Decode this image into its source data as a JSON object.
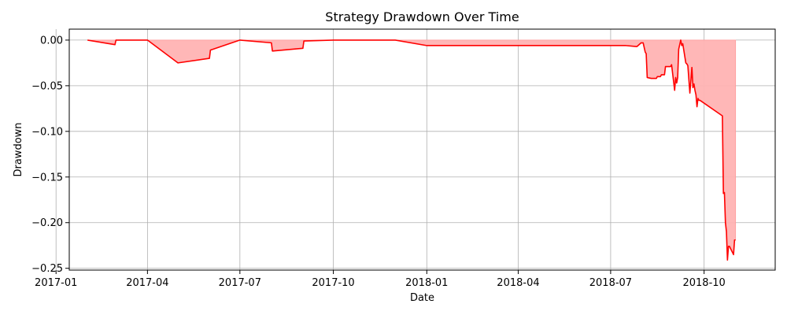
{
  "chart_data": {
    "type": "area",
    "title": "Strategy Drawdown Over Time",
    "xlabel": "Date",
    "ylabel": "Drawdown",
    "grid": true,
    "x_range": [
      "2017-01-14",
      "2018-12-10"
    ],
    "ylim": [
      -0.252,
      0.012
    ],
    "x_ticks": [
      "2017-01",
      "2017-04",
      "2017-07",
      "2017-10",
      "2018-01",
      "2018-04",
      "2018-07",
      "2018-10"
    ],
    "x_tick_dates": [
      "2017-01-01",
      "2017-04-01",
      "2017-07-01",
      "2017-10-01",
      "2018-01-01",
      "2018-04-01",
      "2018-07-01",
      "2018-10-01"
    ],
    "y_ticks": [
      0.0,
      -0.05,
      -0.1,
      -0.15,
      -0.2,
      -0.25
    ],
    "y_tick_labels": [
      "0.00",
      "−0.05",
      "−0.10",
      "−0.15",
      "−0.20",
      "−0.25"
    ],
    "series": [
      {
        "line_color": "#ff0000",
        "fill_color": "#ffb3b3",
        "x": [
          "2017-02-01",
          "2017-02-28",
          "2017-03-01",
          "2017-04-01",
          "2017-05-01",
          "2017-06-01",
          "2017-06-02",
          "2017-07-01",
          "2017-08-01",
          "2017-08-02",
          "2017-09-01",
          "2017-09-02",
          "2017-10-01",
          "2017-12-01",
          "2018-01-01",
          "2018-07-16",
          "2018-07-26",
          "2018-07-27",
          "2018-07-31",
          "2018-08-02",
          "2018-08-04",
          "2018-08-05",
          "2018-08-06",
          "2018-08-10",
          "2018-08-15",
          "2018-08-16",
          "2018-08-19",
          "2018-08-20",
          "2018-08-23",
          "2018-08-24",
          "2018-08-29",
          "2018-08-30",
          "2018-09-02",
          "2018-09-03",
          "2018-09-04",
          "2018-09-05",
          "2018-09-06",
          "2018-09-08",
          "2018-09-09",
          "2018-09-10",
          "2018-09-12",
          "2018-09-13",
          "2018-09-14",
          "2018-09-15",
          "2018-09-17",
          "2018-09-19",
          "2018-09-20",
          "2018-09-21",
          "2018-09-22",
          "2018-09-23",
          "2018-09-24",
          "2018-09-25",
          "2018-09-26",
          "2018-09-27",
          "2018-10-19",
          "2018-10-20",
          "2018-10-21",
          "2018-10-22",
          "2018-10-23",
          "2018-10-24",
          "2018-10-25",
          "2018-10-26",
          "2018-10-30",
          "2018-10-31",
          "2018-11-01"
        ],
        "y": [
          0.0,
          -0.005,
          0.0,
          0.0,
          -0.025,
          -0.02,
          -0.011,
          0.0,
          -0.003,
          -0.012,
          -0.009,
          -0.001,
          0.0,
          0.0,
          -0.006,
          -0.006,
          -0.007,
          -0.007,
          -0.003,
          -0.003,
          -0.013,
          -0.015,
          -0.041,
          -0.042,
          -0.042,
          -0.04,
          -0.04,
          -0.038,
          -0.038,
          -0.029,
          -0.029,
          -0.027,
          -0.055,
          -0.041,
          -0.047,
          -0.041,
          -0.01,
          0.0,
          -0.006,
          -0.004,
          -0.018,
          -0.025,
          -0.026,
          -0.028,
          -0.058,
          -0.03,
          -0.052,
          -0.048,
          -0.055,
          -0.06,
          -0.073,
          -0.064,
          -0.066,
          -0.066,
          -0.083,
          -0.168,
          -0.167,
          -0.2,
          -0.21,
          -0.241,
          -0.226,
          -0.226,
          -0.235,
          -0.219,
          -0.219
        ]
      }
    ]
  }
}
